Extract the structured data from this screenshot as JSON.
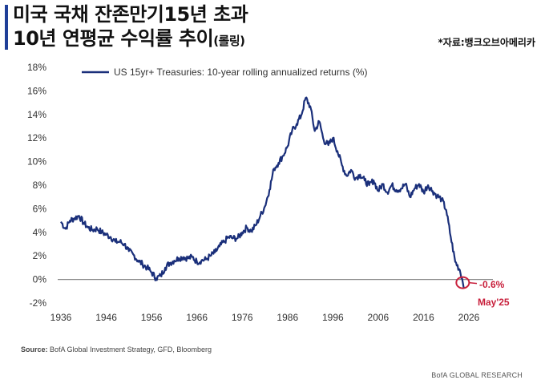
{
  "header": {
    "title_line1": "미국 국채 잔존만기15년 초과",
    "title_line2": "10년 연평균 수익률 추이",
    "title_suffix": "(롤링)",
    "source_tag": "*자료:뱅크오브아메리카"
  },
  "chart_data": {
    "type": "line",
    "series": [
      {
        "name": "US 15yr+ Treasuries: 10-year rolling annualized returns (%)",
        "color": "#1a2f7a",
        "x": [
          1936,
          1937,
          1938,
          1939,
          1940,
          1941,
          1942,
          1943,
          1944,
          1945,
          1946,
          1947,
          1948,
          1949,
          1950,
          1951,
          1952,
          1953,
          1954,
          1955,
          1956,
          1957,
          1958,
          1959,
          1960,
          1961,
          1962,
          1963,
          1964,
          1965,
          1966,
          1967,
          1968,
          1969,
          1970,
          1971,
          1972,
          1973,
          1974,
          1975,
          1976,
          1977,
          1978,
          1979,
          1980,
          1981,
          1982,
          1983,
          1984,
          1985,
          1986,
          1987,
          1988,
          1989,
          1990,
          1991,
          1992,
          1993,
          1994,
          1995,
          1996,
          1997,
          1998,
          1999,
          2000,
          2001,
          2002,
          2003,
          2004,
          2005,
          2006,
          2007,
          2008,
          2009,
          2010,
          2011,
          2012,
          2013,
          2014,
          2015,
          2016,
          2017,
          2018,
          2019,
          2020,
          2021,
          2022,
          2023,
          2024,
          2025
        ],
        "y": [
          4.9,
          4.3,
          5.0,
          5.2,
          5.4,
          4.8,
          4.4,
          4.2,
          4.3,
          4.0,
          3.8,
          3.6,
          3.2,
          3.2,
          3.0,
          2.4,
          2.1,
          1.6,
          1.3,
          1.0,
          0.6,
          0.1,
          0.3,
          1.0,
          1.4,
          1.6,
          1.8,
          1.9,
          1.8,
          1.9,
          1.5,
          1.6,
          1.7,
          2.0,
          2.3,
          2.8,
          3.2,
          3.6,
          3.5,
          3.5,
          4.0,
          4.4,
          4.1,
          4.6,
          5.4,
          6.2,
          7.6,
          9.4,
          9.9,
          10.5,
          11.3,
          12.6,
          13.2,
          13.9,
          15.4,
          14.7,
          12.6,
          13.4,
          11.8,
          11.4,
          12.0,
          10.9,
          9.7,
          8.8,
          9.3,
          8.6,
          8.9,
          8.4,
          8.0,
          8.4,
          7.5,
          8.1,
          7.4,
          8.0,
          7.6,
          7.7,
          8.1,
          7.0,
          7.7,
          8.1,
          7.4,
          8.0,
          7.5,
          7.1,
          6.8,
          5.9,
          3.6,
          1.5,
          0.8,
          -0.6
        ]
      }
    ],
    "xlim": [
      1936,
      2026
    ],
    "ylim": [
      -2,
      18
    ],
    "x_ticks": [
      "1936",
      "1946",
      "1956",
      "1966",
      "1976",
      "1986",
      "1996",
      "2006",
      "2016",
      "2026"
    ],
    "y_ticks": [
      "-2%",
      "0%",
      "2%",
      "4%",
      "6%",
      "8%",
      "10%",
      "12%",
      "14%",
      "16%",
      "18%"
    ],
    "grid": false,
    "legend_position": "top-left",
    "annotation": {
      "value_label": "-0.6%",
      "date_label": "May'25",
      "color": "#c8203c"
    }
  },
  "footer": {
    "source_label": "Source:",
    "source_text": "BofA Global Investment Strategy, GFD, Bloomberg",
    "brand": "BofA GLOBAL RESEARCH"
  }
}
